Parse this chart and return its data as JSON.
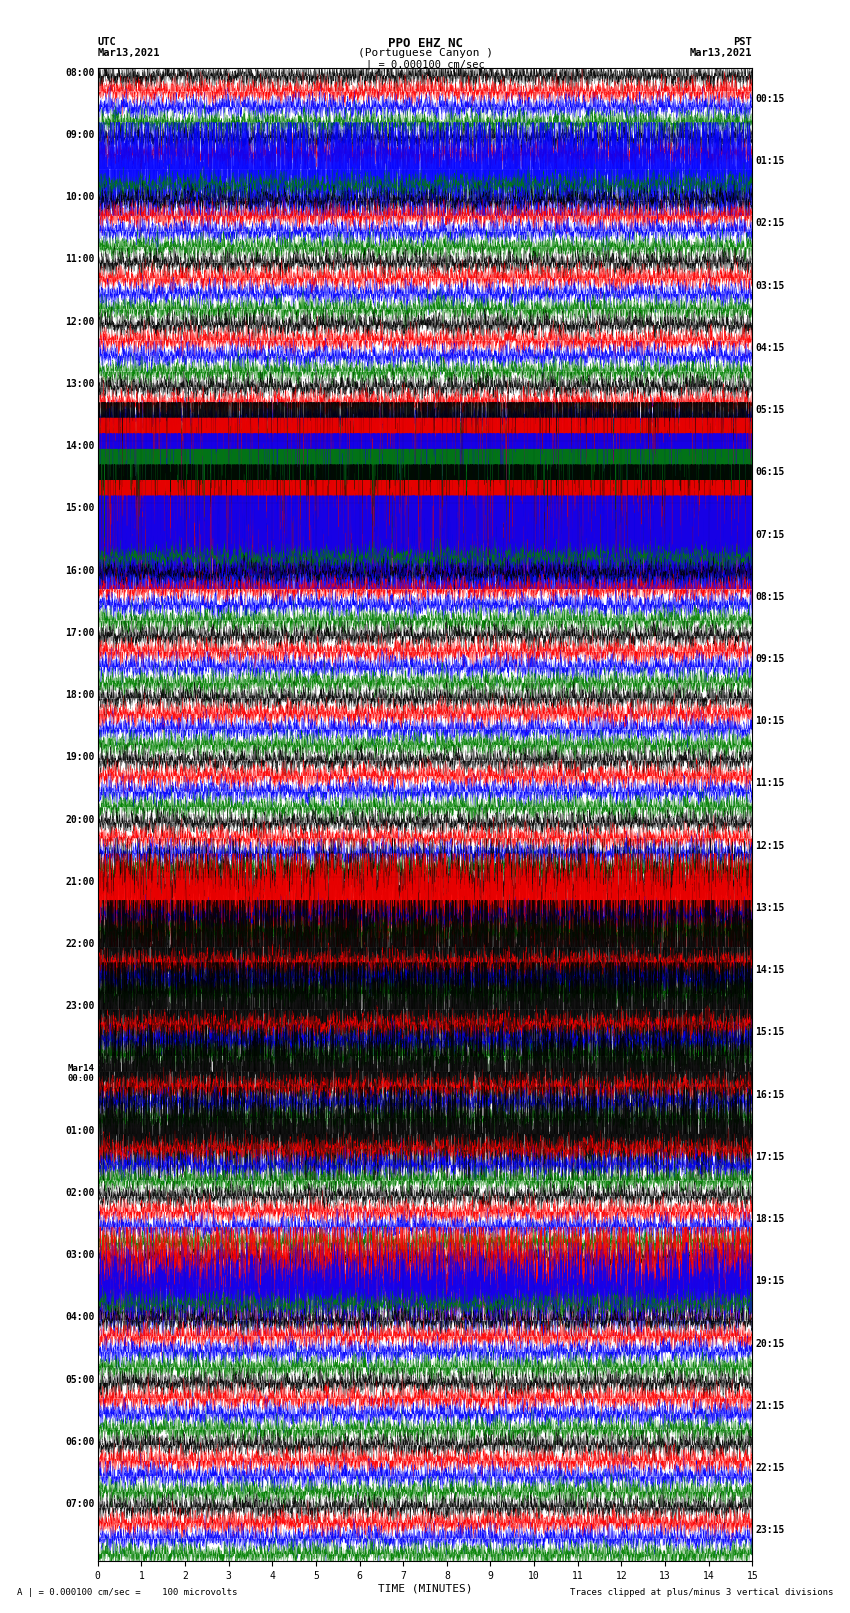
{
  "title_line1": "PPO EHZ NC",
  "title_line2": "(Portuguese Canyon )",
  "title_line3": "| = 0.000100 cm/sec",
  "left_header_line1": "UTC",
  "left_header_line2": "Mar13,2021",
  "right_header_line1": "PST",
  "right_header_line2": "Mar13,2021",
  "xlabel": "TIME (MINUTES)",
  "bottom_left_text": "A | = 0.000100 cm/sec =    100 microvolts",
  "bottom_right_text": "Traces clipped at plus/minus 3 vertical divisions",
  "utc_labels": [
    "08:00",
    "09:00",
    "10:00",
    "11:00",
    "12:00",
    "13:00",
    "14:00",
    "15:00",
    "16:00",
    "17:00",
    "18:00",
    "19:00",
    "20:00",
    "21:00",
    "22:00",
    "23:00",
    "Mar14\n00:00",
    "01:00",
    "02:00",
    "03:00",
    "04:00",
    "05:00",
    "06:00",
    "07:00"
  ],
  "pst_labels": [
    "00:15",
    "01:15",
    "02:15",
    "03:15",
    "04:15",
    "05:15",
    "06:15",
    "07:15",
    "08:15",
    "09:15",
    "10:15",
    "11:15",
    "12:15",
    "13:15",
    "14:15",
    "15:15",
    "16:15",
    "17:15",
    "18:15",
    "19:15",
    "20:15",
    "21:15",
    "22:15",
    "23:15"
  ],
  "n_rows": 24,
  "traces_per_row": 4,
  "trace_colors": [
    "black",
    "red",
    "blue",
    "green"
  ],
  "background_color": "white",
  "x_min": 0,
  "x_max": 15,
  "x_ticks": [
    0,
    1,
    2,
    3,
    4,
    5,
    6,
    7,
    8,
    9,
    10,
    11,
    12,
    13,
    14,
    15
  ]
}
